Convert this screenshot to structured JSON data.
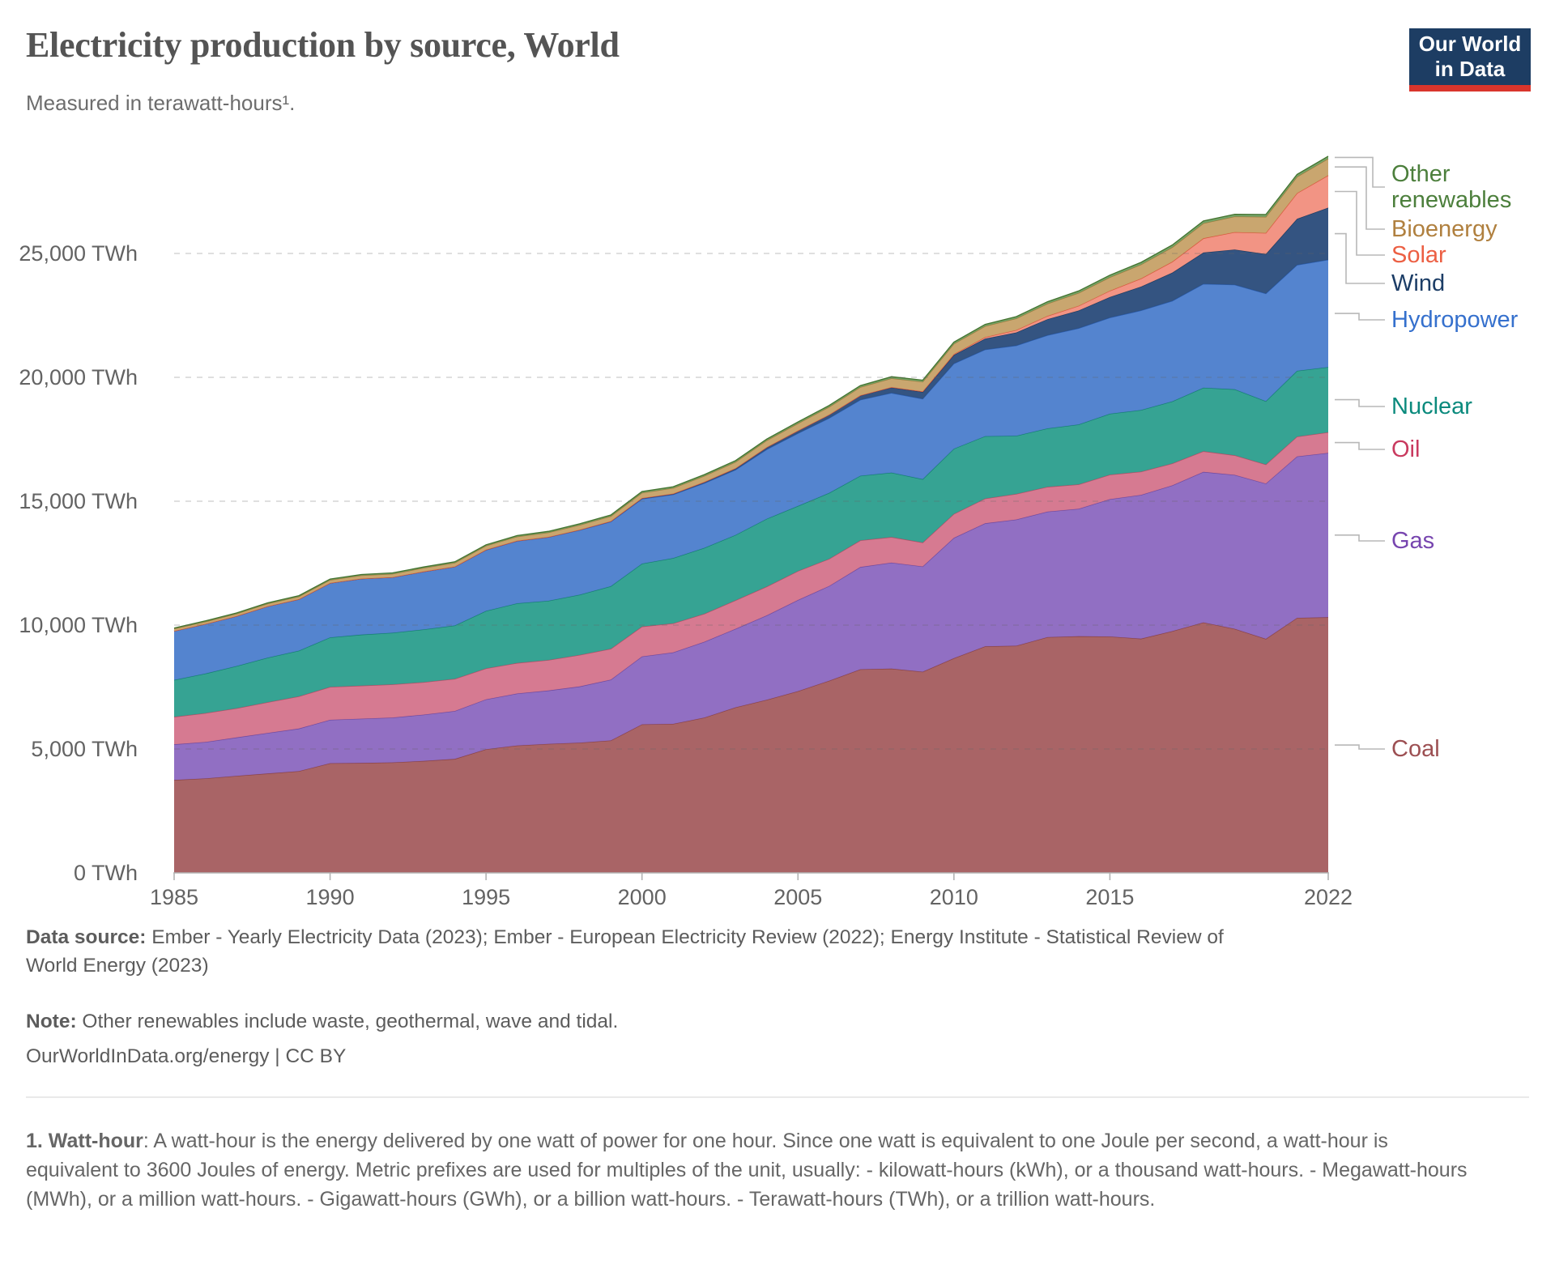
{
  "header": {
    "title": "Electricity production by source, World",
    "subtitle": "Measured in terawatt-hours¹.",
    "logo": {
      "line1": "Our World",
      "line2": "in Data",
      "bg_color": "#1d3d63",
      "accent_color": "#d9352c"
    }
  },
  "chart_data": {
    "type": "area",
    "stacked": true,
    "title": "Electricity production by source, World",
    "unit": "TWh",
    "xlabel": "",
    "ylabel": "",
    "ylim": [
      0,
      29000
    ],
    "gridlines": "dashed-horizontal",
    "legend_position": "right",
    "years": [
      1985,
      1986,
      1987,
      1988,
      1989,
      1990,
      1991,
      1992,
      1993,
      1994,
      1995,
      1996,
      1997,
      1998,
      1999,
      2000,
      2001,
      2002,
      2003,
      2004,
      2005,
      2006,
      2007,
      2008,
      2009,
      2010,
      2011,
      2012,
      2013,
      2014,
      2015,
      2016,
      2017,
      2018,
      2019,
      2020,
      2021,
      2022
    ],
    "series": [
      {
        "id": "coal",
        "label": "Coal",
        "color": "#9c4f52",
        "fill": "#a65f61",
        "stroke": "#8b4345",
        "values": [
          3748,
          3810,
          3915,
          4011,
          4103,
          4426,
          4434,
          4457,
          4517,
          4597,
          4986,
          5142,
          5205,
          5255,
          5342,
          5995,
          6013,
          6266,
          6681,
          6983,
          7333,
          7756,
          8216,
          8242,
          8118,
          8665,
          9141,
          9168,
          9513,
          9550,
          9538,
          9451,
          9756,
          10107,
          9850,
          9444,
          10290,
          10317
        ]
      },
      {
        "id": "gas",
        "label": "Gas",
        "color": "#7745af",
        "fill": "#8d6ac1",
        "stroke": "#6d4aa1",
        "values": [
          1438,
          1470,
          1550,
          1636,
          1722,
          1752,
          1789,
          1812,
          1869,
          1937,
          2017,
          2097,
          2153,
          2268,
          2456,
          2741,
          2886,
          3062,
          3168,
          3410,
          3681,
          3821,
          4126,
          4277,
          4247,
          4855,
          4966,
          5092,
          5066,
          5143,
          5543,
          5804,
          5882,
          6077,
          6212,
          6268,
          6518,
          6631
        ]
      },
      {
        "id": "oil",
        "label": "Oil",
        "color": "#c93a5f",
        "fill": "#d5768d",
        "stroke": "#b44e66",
        "values": [
          1110,
          1168,
          1178,
          1243,
          1298,
          1325,
          1334,
          1338,
          1310,
          1297,
          1247,
          1232,
          1234,
          1272,
          1246,
          1205,
          1171,
          1131,
          1152,
          1161,
          1168,
          1097,
          1077,
          1034,
          967,
          966,
          1001,
          1033,
          1000,
          987,
          990,
          937,
          885,
          831,
          790,
          771,
          800,
          833
        ]
      },
      {
        "id": "nuclear",
        "label": "Nuclear",
        "color": "#0b8a7d",
        "fill": "#2fa090",
        "stroke": "#15816f",
        "values": [
          1489,
          1594,
          1703,
          1795,
          1843,
          2001,
          2059,
          2081,
          2128,
          2153,
          2321,
          2407,
          2390,
          2431,
          2526,
          2540,
          2637,
          2660,
          2635,
          2738,
          2626,
          2660,
          2608,
          2601,
          2558,
          2633,
          2517,
          2346,
          2358,
          2414,
          2457,
          2489,
          2503,
          2563,
          2664,
          2553,
          2653,
          2632
        ]
      },
      {
        "id": "hydropower",
        "label": "Hydropower",
        "color": "#3570cd",
        "fill": "#4e80cd",
        "stroke": "#2d5fb0",
        "values": [
          1979,
          2003,
          2015,
          2076,
          2078,
          2191,
          2255,
          2240,
          2333,
          2373,
          2462,
          2517,
          2566,
          2609,
          2604,
          2613,
          2560,
          2609,
          2632,
          2804,
          2934,
          3023,
          3066,
          3216,
          3245,
          3437,
          3496,
          3646,
          3763,
          3885,
          3879,
          4019,
          4060,
          4193,
          4222,
          4346,
          4274,
          4334
        ]
      },
      {
        "id": "wind",
        "label": "Wind",
        "color": "#1c3d66",
        "fill": "#2d4e7d",
        "stroke": "#1a3a61",
        "values": [
          0,
          1,
          1,
          2,
          3,
          4,
          4,
          5,
          6,
          7,
          8,
          9,
          12,
          16,
          21,
          31,
          38,
          52,
          63,
          85,
          104,
          133,
          171,
          221,
          276,
          346,
          437,
          526,
          646,
          717,
          831,
          959,
          1136,
          1265,
          1419,
          1591,
          1862,
          2098
        ]
      },
      {
        "id": "solar",
        "label": "Solar",
        "color": "#ec5f43",
        "fill": "#f29180",
        "stroke": "#d9563c",
        "values": [
          0,
          0,
          0,
          0,
          0,
          0,
          0,
          0,
          0,
          0,
          0,
          0,
          0,
          0,
          0,
          1,
          1,
          2,
          2,
          3,
          4,
          5,
          7,
          12,
          20,
          32,
          63,
          97,
          132,
          190,
          256,
          328,
          443,
          574,
          704,
          853,
          1033,
          1310
        ]
      },
      {
        "id": "bioenergy",
        "label": "Bioenergy",
        "color": "#b0803f",
        "fill": "#c7a36a",
        "stroke": "#9c7a3c",
        "values": [
          88,
          92,
          97,
          102,
          108,
          125,
          130,
          136,
          143,
          151,
          160,
          168,
          177,
          188,
          200,
          215,
          225,
          238,
          253,
          270,
          290,
          311,
          334,
          358,
          388,
          420,
          444,
          470,
          497,
          520,
          545,
          565,
          585,
          608,
          628,
          650,
          665,
          672
        ]
      },
      {
        "id": "other_renewables",
        "label": "Other renewables",
        "color": "#4c7f3c",
        "fill": "#71a264",
        "stroke": "#44722f",
        "values": [
          30,
          31,
          32,
          33,
          34,
          36,
          37,
          38,
          39,
          41,
          42,
          44,
          46,
          48,
          50,
          52,
          53,
          54,
          55,
          57,
          58,
          60,
          62,
          64,
          66,
          68,
          71,
          74,
          77,
          81,
          85,
          87,
          89,
          91,
          93,
          95,
          96,
          97
        ]
      }
    ],
    "y_ticks": [
      {
        "value": 0,
        "label": "0 TWh"
      },
      {
        "value": 5000,
        "label": "5,000 TWh"
      },
      {
        "value": 10000,
        "label": "10,000 TWh"
      },
      {
        "value": 15000,
        "label": "15,000 TWh"
      },
      {
        "value": 20000,
        "label": "20,000 TWh"
      },
      {
        "value": 25000,
        "label": "25,000 TWh"
      }
    ],
    "x_ticks": [
      {
        "value": 1985,
        "label": "1985"
      },
      {
        "value": 1990,
        "label": "1990"
      },
      {
        "value": 1995,
        "label": "1995"
      },
      {
        "value": 2000,
        "label": "2000"
      },
      {
        "value": 2005,
        "label": "2005"
      },
      {
        "value": 2010,
        "label": "2010"
      },
      {
        "value": 2015,
        "label": "2015"
      },
      {
        "value": 2022,
        "label": "2022"
      }
    ]
  },
  "footer": {
    "source_label": "Data source:",
    "source_text": " Ember - Yearly Electricity Data (2023); Ember - European Electricity Review (2022); Energy Institute - Statistical Review of World Energy (2023)",
    "note_label": "Note:",
    "note_text": " Other renewables include waste, geothermal, wave and tidal.",
    "link_text": "OurWorldInData.org/energy | CC BY"
  },
  "footnote": {
    "label": "1. Watt-hour",
    "text": ": A watt-hour is the energy delivered by one watt of power for one hour. Since one watt is equivalent to one Joule per second, a watt-hour is equivalent to 3600 Joules of energy. Metric prefixes are used for multiples of the unit, usually: - kilowatt-hours (kWh), or a thousand watt-hours. - Megawatt-hours (MWh), or a million watt-hours. - Gigawatt-hours (GWh), or a billion watt-hours. - Terawatt-hours (TWh), or a trillion watt-hours."
  }
}
